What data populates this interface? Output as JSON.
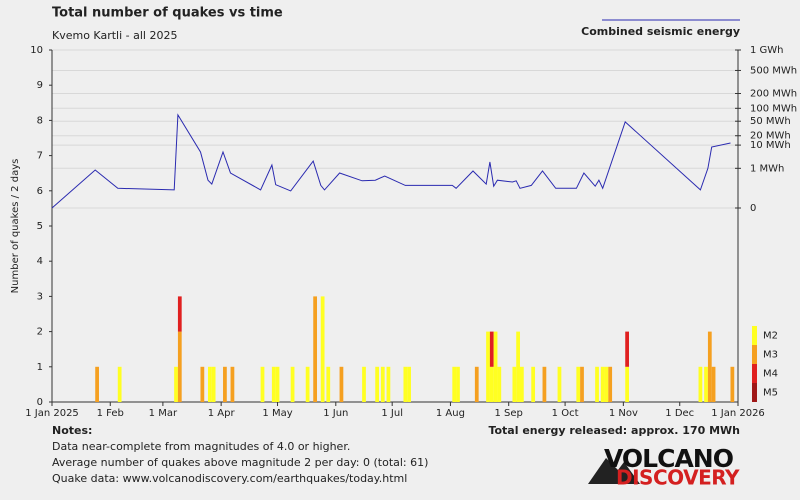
{
  "chart_data": {
    "type": "bar",
    "title": "Total number of quakes vs time",
    "subtitle": "Kvemo Kartli - all 2025",
    "y_label": "Number of quakes / 2 days",
    "xlim": [
      "2025-01-01",
      "2026-01-01"
    ],
    "xticks": [
      {
        "value": "2025-01-01",
        "label": "1 Jan 2025"
      },
      {
        "value": "2025-02-01",
        "label": "1 Feb"
      },
      {
        "value": "2025-03-01",
        "label": "1 Mar"
      },
      {
        "value": "2025-04-01",
        "label": "1 Apr"
      },
      {
        "value": "2025-05-01",
        "label": "1 May"
      },
      {
        "value": "2025-06-01",
        "label": "1 Jun"
      },
      {
        "value": "2025-07-01",
        "label": "1 Jul"
      },
      {
        "value": "2025-08-01",
        "label": "1 Aug"
      },
      {
        "value": "2025-09-01",
        "label": "1 Sep"
      },
      {
        "value": "2025-10-01",
        "label": "1 Oct"
      },
      {
        "value": "2025-11-01",
        "label": "1 Nov"
      },
      {
        "value": "2025-12-01",
        "label": "1 Dec"
      },
      {
        "value": "2026-01-01",
        "label": "1 Jan 2026"
      }
    ],
    "ylim": [
      0,
      10
    ],
    "yticks": [
      0,
      1,
      2,
      3,
      4,
      5,
      6,
      7,
      8,
      9,
      10
    ],
    "y2lim": [
      0,
      1000
    ],
    "y2scale": "power",
    "y2exponent": 0.2,
    "y2ticks": [
      {
        "value": 1000,
        "label": "1 GWh"
      },
      {
        "value": 500,
        "label": "500 MWh"
      },
      {
        "value": 200,
        "label": "200 MWh"
      },
      {
        "value": 100,
        "label": "100 MWh"
      },
      {
        "value": 50,
        "label": "50 MWh"
      },
      {
        "value": 20,
        "label": "20 MWh"
      },
      {
        "value": 10,
        "label": "10 MWh"
      },
      {
        "value": 1,
        "label": "1 MWh"
      },
      0
    ],
    "grid": true,
    "x": [
      "2025-01-24",
      "2025-02-05",
      "2025-03-07",
      "2025-03-09",
      "2025-03-21",
      "2025-03-25",
      "2025-03-27",
      "2025-04-02",
      "2025-04-06",
      "2025-04-22",
      "2025-04-28",
      "2025-04-30",
      "2025-05-08",
      "2025-05-16",
      "2025-05-20",
      "2025-05-24",
      "2025-05-27",
      "2025-06-03",
      "2025-06-15",
      "2025-06-22",
      "2025-06-25",
      "2025-06-28",
      "2025-07-07",
      "2025-07-09",
      "2025-08-02",
      "2025-08-04",
      "2025-08-14",
      "2025-08-20",
      "2025-08-22",
      "2025-08-24",
      "2025-08-26",
      "2025-09-03",
      "2025-09-05",
      "2025-09-07",
      "2025-09-13",
      "2025-09-19",
      "2025-09-27",
      "2025-10-07",
      "2025-10-09",
      "2025-10-17",
      "2025-10-20",
      "2025-10-22",
      "2025-10-24",
      "2025-11-02",
      "2025-12-11",
      "2025-12-14",
      "2025-12-16",
      "2025-12-18",
      "2025-12-28"
    ],
    "series": [
      {
        "name": "M2",
        "color": "#ffff22",
        "values": [
          0,
          1,
          1,
          0,
          0,
          1,
          1,
          0,
          0,
          1,
          1,
          1,
          1,
          1,
          0,
          3,
          1,
          0,
          1,
          1,
          1,
          1,
          1,
          1,
          1,
          1,
          0,
          2,
          1,
          2,
          1,
          1,
          2,
          1,
          1,
          0,
          1,
          1,
          0,
          1,
          1,
          1,
          0,
          1,
          1,
          1,
          0,
          0,
          0
        ]
      },
      {
        "name": "M3",
        "color": "#f5a020",
        "values": [
          1,
          0,
          0,
          2,
          1,
          0,
          0,
          1,
          1,
          0,
          0,
          0,
          0,
          0,
          3,
          0,
          0,
          1,
          0,
          0,
          0,
          0,
          0,
          0,
          0,
          0,
          1,
          0,
          0,
          0,
          0,
          0,
          0,
          0,
          0,
          1,
          0,
          0,
          1,
          0,
          0,
          0,
          1,
          0,
          0,
          0,
          2,
          1,
          1
        ]
      },
      {
        "name": "M4",
        "color": "#e02020",
        "values": [
          0,
          0,
          0,
          1,
          0,
          0,
          0,
          0,
          0,
          0,
          0,
          0,
          0,
          0,
          0,
          0,
          0,
          0,
          0,
          0,
          0,
          0,
          0,
          0,
          0,
          0,
          0,
          0,
          1,
          0,
          0,
          0,
          0,
          0,
          0,
          0,
          0,
          0,
          0,
          0,
          0,
          0,
          0,
          1,
          0,
          0,
          0,
          0,
          0
        ]
      },
      {
        "name": "M5",
        "color": "#a01818",
        "values": [
          0,
          0,
          0,
          0,
          0,
          0,
          0,
          0,
          0,
          0,
          0,
          0,
          0,
          0,
          0,
          0,
          0,
          0,
          0,
          0,
          0,
          0,
          0,
          0,
          0,
          0,
          0,
          0,
          0,
          0,
          0,
          0,
          0,
          0,
          0,
          0,
          0,
          0,
          0,
          0,
          0,
          0,
          0,
          0,
          0,
          0,
          0,
          0,
          0
        ]
      },
      {
        "name": "Combined seismic energy",
        "type": "line",
        "axis": "y2",
        "color": "#2a2ab0",
        "x": [
          "2025-01-01",
          "2025-01-24",
          "2025-02-05",
          "2025-03-07",
          "2025-03-09",
          "2025-03-21",
          "2025-03-25",
          "2025-03-27",
          "2025-04-02",
          "2025-04-06",
          "2025-04-22",
          "2025-04-28",
          "2025-04-30",
          "2025-05-08",
          "2025-05-20",
          "2025-05-24",
          "2025-05-26",
          "2025-06-03",
          "2025-06-15",
          "2025-06-22",
          "2025-06-27",
          "2025-07-08",
          "2025-08-02",
          "2025-08-04",
          "2025-08-13",
          "2025-08-20",
          "2025-08-22",
          "2025-08-24",
          "2025-08-26",
          "2025-09-03",
          "2025-09-05",
          "2025-09-07",
          "2025-09-13",
          "2025-09-19",
          "2025-09-26",
          "2025-10-07",
          "2025-10-11",
          "2025-10-17",
          "2025-10-19",
          "2025-10-21",
          "2025-11-02",
          "2025-12-12",
          "2025-12-16",
          "2025-12-18",
          "2025-12-28"
        ],
        "values": [
          0,
          0.8,
          0.03,
          0.02,
          71,
          5.6,
          0.17,
          0.08,
          5.6,
          0.53,
          0.02,
          1.5,
          0.07,
          0.015,
          2.3,
          0.06,
          0.02,
          0.53,
          0.15,
          0.17,
          0.34,
          0.06,
          0.06,
          0.03,
          0.7,
          0.08,
          2.1,
          0.05,
          0.17,
          0.12,
          0.15,
          0.03,
          0.06,
          0.7,
          0.03,
          0.03,
          0.53,
          0.05,
          0.17,
          0.03,
          48,
          0.02,
          1,
          8.6,
          11.8
        ]
      }
    ],
    "notes_title": "Notes:",
    "notes": [
      "Data near-complete from magnitudes of 4.0 or higher.",
      "Average number of quakes above magnitude 2 per day: 0 (total: 61)",
      "Quake data: www.volcanodiscovery.com/earthquakes/today.html"
    ],
    "total_energy": "Total energy released: approx. 170 MWh",
    "logo": [
      "VOLCANO",
      "DISCOVERY"
    ]
  }
}
